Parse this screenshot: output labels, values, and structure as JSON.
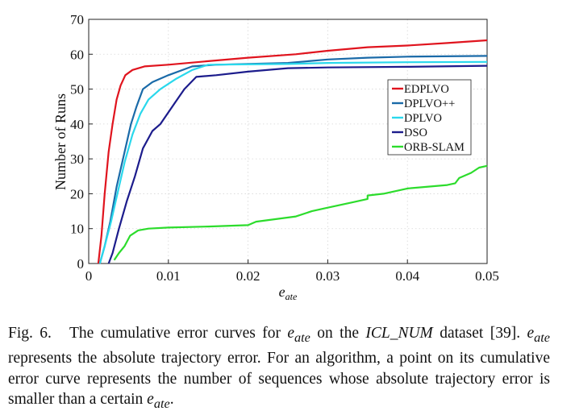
{
  "chart_data": {
    "type": "line",
    "title": "",
    "xlabel_main": "e",
    "xlabel_sub": "ate",
    "ylabel": "Number of Runs",
    "xlim": [
      0,
      0.05
    ],
    "ylim": [
      0,
      70
    ],
    "grid": true,
    "legend_position": "center-right",
    "x_ticks": [
      0,
      0.01,
      0.02,
      0.03,
      0.04,
      0.05
    ],
    "x_tick_labels": [
      "0",
      "0.01",
      "0.02",
      "0.03",
      "0.04",
      "0.05"
    ],
    "y_ticks": [
      0,
      10,
      20,
      30,
      40,
      50,
      60,
      70
    ],
    "y_tick_labels": [
      "0",
      "10",
      "20",
      "30",
      "40",
      "50",
      "60",
      "70"
    ],
    "series": [
      {
        "name": "EDPLVO",
        "color": "#e0141e",
        "points": [
          [
            0.0012,
            0
          ],
          [
            0.0016,
            8
          ],
          [
            0.002,
            20
          ],
          [
            0.0025,
            32
          ],
          [
            0.003,
            40
          ],
          [
            0.0035,
            47
          ],
          [
            0.004,
            51
          ],
          [
            0.0046,
            54
          ],
          [
            0.0055,
            55.5
          ],
          [
            0.007,
            56.5
          ],
          [
            0.01,
            57
          ],
          [
            0.015,
            58
          ],
          [
            0.02,
            59
          ],
          [
            0.026,
            60
          ],
          [
            0.03,
            61
          ],
          [
            0.035,
            62
          ],
          [
            0.04,
            62.5
          ],
          [
            0.045,
            63.2
          ],
          [
            0.05,
            64
          ]
        ]
      },
      {
        "name": "DPLVO++",
        "color": "#1a6aa8",
        "points": [
          [
            0.0014,
            0
          ],
          [
            0.002,
            5
          ],
          [
            0.0027,
            12
          ],
          [
            0.0035,
            22
          ],
          [
            0.0045,
            32
          ],
          [
            0.0053,
            40
          ],
          [
            0.006,
            45
          ],
          [
            0.0068,
            50
          ],
          [
            0.008,
            52
          ],
          [
            0.01,
            54
          ],
          [
            0.013,
            56.5
          ],
          [
            0.016,
            57
          ],
          [
            0.025,
            57.5
          ],
          [
            0.03,
            58.5
          ],
          [
            0.035,
            59
          ],
          [
            0.04,
            59.3
          ],
          [
            0.05,
            59.5
          ]
        ]
      },
      {
        "name": "DPLVO",
        "color": "#2ad8ec",
        "points": [
          [
            0.0014,
            0
          ],
          [
            0.002,
            5
          ],
          [
            0.0028,
            12
          ],
          [
            0.0036,
            20
          ],
          [
            0.0045,
            29
          ],
          [
            0.0055,
            37
          ],
          [
            0.0065,
            43
          ],
          [
            0.0075,
            47
          ],
          [
            0.009,
            50
          ],
          [
            0.011,
            53
          ],
          [
            0.013,
            55.5
          ],
          [
            0.015,
            57
          ],
          [
            0.025,
            57.2
          ],
          [
            0.03,
            57.5
          ],
          [
            0.04,
            57.7
          ],
          [
            0.05,
            57.8
          ]
        ]
      },
      {
        "name": "DSO",
        "color": "#1c1c8c",
        "points": [
          [
            0.0025,
            0
          ],
          [
            0.003,
            3
          ],
          [
            0.0038,
            10
          ],
          [
            0.0048,
            18
          ],
          [
            0.0058,
            25
          ],
          [
            0.0068,
            33
          ],
          [
            0.008,
            38
          ],
          [
            0.009,
            40
          ],
          [
            0.0105,
            45
          ],
          [
            0.012,
            50
          ],
          [
            0.0135,
            53.5
          ],
          [
            0.016,
            54
          ],
          [
            0.02,
            55
          ],
          [
            0.025,
            56
          ],
          [
            0.03,
            56.2
          ],
          [
            0.04,
            56.4
          ],
          [
            0.05,
            56.7
          ]
        ]
      },
      {
        "name": "ORB-SLAM",
        "color": "#2cdc2c",
        "points": [
          [
            0.0032,
            1
          ],
          [
            0.0038,
            3
          ],
          [
            0.0045,
            5
          ],
          [
            0.0052,
            8
          ],
          [
            0.0062,
            9.5
          ],
          [
            0.0075,
            10
          ],
          [
            0.01,
            10.3
          ],
          [
            0.015,
            10.6
          ],
          [
            0.02,
            11
          ],
          [
            0.021,
            12
          ],
          [
            0.026,
            13.5
          ],
          [
            0.028,
            15
          ],
          [
            0.03,
            16
          ],
          [
            0.033,
            17.5
          ],
          [
            0.035,
            18.5
          ],
          [
            0.035,
            19.5
          ],
          [
            0.037,
            20
          ],
          [
            0.04,
            21.5
          ],
          [
            0.045,
            22.5
          ],
          [
            0.046,
            23
          ],
          [
            0.0465,
            24.5
          ],
          [
            0.048,
            26
          ],
          [
            0.049,
            27.5
          ],
          [
            0.05,
            28
          ]
        ]
      }
    ]
  },
  "caption": {
    "label": "Fig. 6.",
    "t1": " The cumulative error curves for ",
    "var_main": "e",
    "var_sub": "ate",
    "t2": " on the ",
    "dataset": "ICL_NUM",
    "t3": " dataset [39]. ",
    "t4": " represents the absolute trajectory error. For an algorithm, a point on its cumulative error curve represents the number of sequences whose absolute trajectory error is smaller than a certain ",
    "t5": "."
  }
}
